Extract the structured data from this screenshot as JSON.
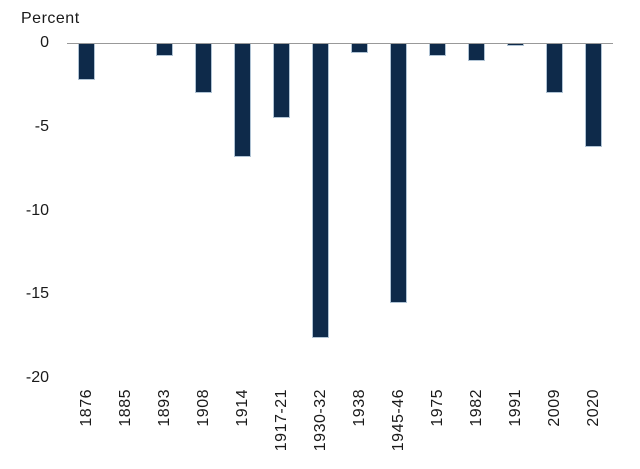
{
  "chart_data": {
    "type": "bar",
    "title": "",
    "ylabel": "Percent",
    "xlabel": "",
    "categories": [
      "1876",
      "1885",
      "1893",
      "1908",
      "1914",
      "1917-21",
      "1930-32",
      "1938",
      "1945-46",
      "1975",
      "1982",
      "1991",
      "2009",
      "2020"
    ],
    "values": [
      -2.2,
      0,
      -0.8,
      -3.0,
      -6.8,
      -4.5,
      -17.6,
      -0.6,
      -15.5,
      -0.8,
      -1.1,
      -0.2,
      -3.0,
      -6.2
    ],
    "yticks": [
      0,
      -5,
      -10,
      -15,
      -20
    ],
    "ylim": [
      -20,
      0
    ],
    "grid": false,
    "legend": false,
    "colors": {
      "bar_fill": "#0e2a4a",
      "bar_border": "#b0c3d4",
      "axis_line": "#999999",
      "text": "#1a1a1a",
      "background": "#ffffff"
    }
  }
}
